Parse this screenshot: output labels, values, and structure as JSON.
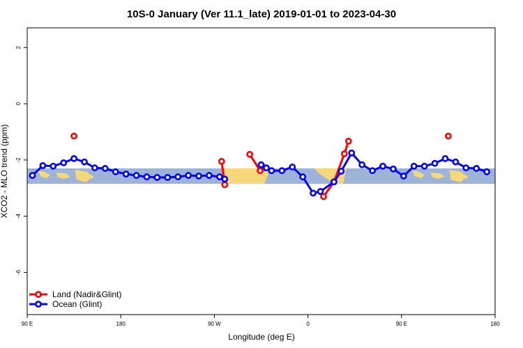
{
  "chart_data": {
    "type": "line",
    "title": "10S-0 January (Ver 11.1_late)   2019-01-01 to 2023-04-30",
    "xlabel": "Longitude (deg E)",
    "ylabel": "XCO2 - MLO trend (ppm)",
    "xlim": [
      90,
      540
    ],
    "ylim": [
      -7.5,
      2.7
    ],
    "x_ticks": [
      {
        "value": 90,
        "label": "90 E"
      },
      {
        "value": 180,
        "label": "180"
      },
      {
        "value": 270,
        "label": "90 W"
      },
      {
        "value": 360,
        "label": "0"
      },
      {
        "value": 450,
        "label": "90 E"
      },
      {
        "value": 540,
        "label": "180"
      }
    ],
    "y_ticks": [
      {
        "value": 2,
        "label": "2"
      },
      {
        "value": 0,
        "label": "0"
      },
      {
        "value": -2,
        "label": "-2"
      },
      {
        "value": -4,
        "label": "-4"
      },
      {
        "value": -6,
        "label": "-6"
      }
    ],
    "band": {
      "ymin": -2.85,
      "ymax": -2.3
    },
    "series": [
      {
        "name": "Land (Nadir&Glint)",
        "color": "#ff0000",
        "segments": [
          [
            [
              135,
              -1.15
            ]
          ],
          [
            [
              277,
              -2.05
            ],
            [
              280,
              -2.88
            ]
          ],
          [
            [
              304,
              -1.8
            ],
            [
              314,
              -2.38
            ],
            [
              319,
              -2.28
            ]
          ],
          [
            [
              375,
              -3.3
            ],
            [
              385,
              -2.78
            ],
            [
              395,
              -1.78
            ],
            [
              399,
              -1.33
            ]
          ],
          [
            [
              495,
              -1.15
            ]
          ]
        ]
      },
      {
        "name": "Ocean (Glint)",
        "color": "#0000ff",
        "segments": [
          [
            [
              95,
              -2.55
            ],
            [
              105,
              -2.2
            ],
            [
              115,
              -2.22
            ],
            [
              125,
              -2.1
            ],
            [
              135,
              -1.95
            ],
            [
              145,
              -2.07
            ],
            [
              155,
              -2.28
            ],
            [
              165,
              -2.3
            ],
            [
              175,
              -2.42
            ],
            [
              185,
              -2.5
            ],
            [
              195,
              -2.55
            ],
            [
              205,
              -2.6
            ],
            [
              215,
              -2.62
            ],
            [
              225,
              -2.62
            ],
            [
              235,
              -2.6
            ],
            [
              245,
              -2.55
            ],
            [
              255,
              -2.57
            ],
            [
              265,
              -2.55
            ],
            [
              275,
              -2.6
            ],
            [
              280,
              -2.68
            ]
          ],
          [
            [
              315,
              -2.17
            ],
            [
              320,
              -2.28
            ],
            [
              325,
              -2.38
            ],
            [
              335,
              -2.38
            ],
            [
              345,
              -2.25
            ],
            [
              355,
              -2.6
            ],
            [
              365,
              -3.18
            ],
            [
              372,
              -3.12
            ],
            [
              385,
              -2.78
            ],
            [
              392,
              -2.4
            ],
            [
              402,
              -1.75
            ],
            [
              412,
              -2.17
            ],
            [
              422,
              -2.38
            ],
            [
              432,
              -2.22
            ],
            [
              442,
              -2.32
            ],
            [
              452,
              -2.57
            ],
            [
              462,
              -2.22
            ],
            [
              472,
              -2.22
            ],
            [
              482,
              -2.12
            ],
            [
              492,
              -1.95
            ],
            [
              502,
              -2.07
            ],
            [
              512,
              -2.28
            ],
            [
              522,
              -2.3
            ],
            [
              532,
              -2.42
            ]
          ]
        ]
      }
    ],
    "legend": {
      "position": "bottom-left"
    }
  }
}
